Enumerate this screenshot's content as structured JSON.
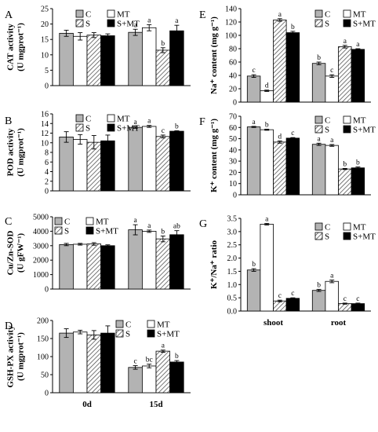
{
  "chart_data": [
    {
      "id": "A",
      "panel_label": "A",
      "type": "bar",
      "ylabel": [
        "CAT activity",
        "(U mgprot⁻¹)"
      ],
      "ylim": [
        0,
        25
      ],
      "yticks": [
        0,
        5,
        10,
        15,
        20,
        25
      ],
      "categories": [
        "0d",
        "15d"
      ],
      "show_categories": false,
      "legend": {
        "rows": [
          [
            "C",
            "MT"
          ],
          [
            "S",
            "S+MT"
          ]
        ]
      },
      "series": [
        {
          "name": "C",
          "fill": "gray",
          "values": [
            17.0,
            17.3
          ],
          "errors": [
            1.0,
            1.0
          ],
          "letters": [
            "",
            "a"
          ]
        },
        {
          "name": "MT",
          "fill": "white",
          "values": [
            16.0,
            18.8
          ],
          "errors": [
            1.2,
            1.0
          ],
          "letters": [
            "",
            "a"
          ]
        },
        {
          "name": "S",
          "fill": "hatch",
          "values": [
            16.4,
            11.5
          ],
          "errors": [
            0.8,
            0.8
          ],
          "letters": [
            "",
            "b"
          ]
        },
        {
          "name": "S+MT",
          "fill": "black",
          "values": [
            16.2,
            17.8
          ],
          "errors": [
            0.6,
            1.8
          ],
          "letters": [
            "",
            "a"
          ]
        }
      ]
    },
    {
      "id": "B",
      "panel_label": "B",
      "type": "bar",
      "ylabel": [
        "POD activity",
        "(U mgprot⁻¹)"
      ],
      "ylim": [
        0,
        16
      ],
      "yticks": [
        0,
        2,
        4,
        6,
        8,
        10,
        12,
        14,
        16
      ],
      "categories": [
        "0d",
        "15d"
      ],
      "show_categories": false,
      "legend": {
        "rows": [
          [
            "C",
            "MT"
          ],
          [
            "S",
            "S+MT"
          ]
        ]
      },
      "series": [
        {
          "name": "C",
          "fill": "gray",
          "values": [
            11.2,
            13.2
          ],
          "errors": [
            1.1,
            0.2
          ],
          "letters": [
            "",
            "a"
          ]
        },
        {
          "name": "MT",
          "fill": "white",
          "values": [
            10.7,
            13.4
          ],
          "errors": [
            1.0,
            0.2
          ],
          "letters": [
            "",
            "a"
          ]
        },
        {
          "name": "S",
          "fill": "hatch",
          "values": [
            10.1,
            11.3
          ],
          "errors": [
            1.4,
            0.3
          ],
          "letters": [
            "",
            "c"
          ]
        },
        {
          "name": "S+MT",
          "fill": "black",
          "values": [
            10.4,
            12.4
          ],
          "errors": [
            1.2,
            0.1
          ],
          "letters": [
            "",
            "b"
          ]
        }
      ]
    },
    {
      "id": "C",
      "panel_label": "C",
      "type": "bar",
      "ylabel": [
        "Cu/Zn-SOD",
        "(U gFW⁻¹)"
      ],
      "ylim": [
        0,
        5000
      ],
      "yticks": [
        0,
        1000,
        2000,
        3000,
        4000,
        5000
      ],
      "categories": [
        "0d",
        "15d"
      ],
      "show_categories": false,
      "legend": {
        "rows": [
          [
            "C",
            "MT"
          ],
          [
            "S",
            "S+MT"
          ]
        ]
      },
      "series": [
        {
          "name": "C",
          "fill": "gray",
          "values": [
            3080,
            4100
          ],
          "errors": [
            80,
            350
          ],
          "letters": [
            "",
            "a"
          ]
        },
        {
          "name": "MT",
          "fill": "white",
          "values": [
            3100,
            4000
          ],
          "errors": [
            60,
            80
          ],
          "letters": [
            "",
            "a"
          ]
        },
        {
          "name": "S",
          "fill": "hatch",
          "values": [
            3120,
            3470
          ],
          "errors": [
            90,
            200
          ],
          "letters": [
            "",
            "b"
          ]
        },
        {
          "name": "S+MT",
          "fill": "black",
          "values": [
            3000,
            3760
          ],
          "errors": [
            60,
            280
          ],
          "letters": [
            "",
            "ab"
          ]
        }
      ]
    },
    {
      "id": "D",
      "panel_label": "D",
      "type": "bar",
      "ylabel": [
        "GSH-PX activity",
        "(U mgprot⁻¹)"
      ],
      "ylim": [
        0,
        200
      ],
      "yticks": [
        0,
        50,
        100,
        150,
        200
      ],
      "categories": [
        "0d",
        "15d"
      ],
      "show_categories": true,
      "legend": {
        "rows": [
          [
            "C",
            "MT"
          ],
          [
            "S",
            "S+MT"
          ]
        ]
      },
      "series": [
        {
          "name": "C",
          "fill": "gray",
          "values": [
            165,
            70
          ],
          "errors": [
            12,
            5
          ],
          "letters": [
            "",
            "c"
          ]
        },
        {
          "name": "MT",
          "fill": "white",
          "values": [
            168,
            74
          ],
          "errors": [
            5,
            5
          ],
          "letters": [
            "",
            "bc"
          ]
        },
        {
          "name": "S",
          "fill": "hatch",
          "values": [
            160,
            115
          ],
          "errors": [
            12,
            3
          ],
          "letters": [
            "",
            "a"
          ]
        },
        {
          "name": "S+MT",
          "fill": "black",
          "values": [
            165,
            85
          ],
          "errors": [
            20,
            4
          ],
          "letters": [
            "",
            "b"
          ]
        }
      ]
    },
    {
      "id": "E",
      "panel_label": "E",
      "type": "bar",
      "ylabel": [
        "Na⁺ content (mg g⁻¹)"
      ],
      "ylim": [
        0,
        140
      ],
      "yticks": [
        0,
        20,
        40,
        60,
        80,
        100,
        120,
        140
      ],
      "categories": [
        "shoot",
        "root"
      ],
      "show_categories": false,
      "legend": {
        "rows": [
          [
            "C",
            "MT"
          ],
          [
            "S",
            "S+MT"
          ]
        ]
      },
      "series": [
        {
          "name": "C",
          "fill": "gray",
          "values": [
            39,
            58
          ],
          "errors": [
            2,
            2
          ],
          "letters": [
            "c",
            "b"
          ]
        },
        {
          "name": "MT",
          "fill": "white",
          "values": [
            17,
            39
          ],
          "errors": [
            1,
            2
          ],
          "letters": [
            "d",
            "c"
          ]
        },
        {
          "name": "S",
          "fill": "hatch",
          "values": [
            123,
            83
          ],
          "errors": [
            2,
            2
          ],
          "letters": [
            "a",
            "a"
          ]
        },
        {
          "name": "S+MT",
          "fill": "black",
          "values": [
            104,
            79
          ],
          "errors": [
            2,
            1
          ],
          "letters": [
            "b",
            "a"
          ]
        }
      ]
    },
    {
      "id": "F",
      "panel_label": "F",
      "type": "bar",
      "ylabel": [
        "K⁺ content (mg g⁻¹)"
      ],
      "ylim": [
        0,
        70
      ],
      "yticks": [
        0,
        10,
        20,
        30,
        40,
        50,
        60,
        70
      ],
      "categories": [
        "shoot",
        "root"
      ],
      "show_categories": false,
      "legend": {
        "rows": [
          [
            "C",
            "MT"
          ],
          [
            "S",
            "S+MT"
          ]
        ]
      },
      "series": [
        {
          "name": "C",
          "fill": "gray",
          "values": [
            60.5,
            45
          ],
          "errors": [
            0.5,
            1.0
          ],
          "letters": [
            "a",
            "a"
          ]
        },
        {
          "name": "MT",
          "fill": "white",
          "values": [
            58,
            44
          ],
          "errors": [
            0.5,
            0.8
          ],
          "letters": [
            "b",
            "a"
          ]
        },
        {
          "name": "S",
          "fill": "hatch",
          "values": [
            47,
            23
          ],
          "errors": [
            1.0,
            0.5
          ],
          "letters": [
            "d",
            "b"
          ]
        },
        {
          "name": "S+MT",
          "fill": "black",
          "values": [
            50.5,
            24
          ],
          "errors": [
            0.5,
            0.8
          ],
          "letters": [
            "c",
            "b"
          ]
        }
      ]
    },
    {
      "id": "G",
      "panel_label": "G",
      "type": "bar",
      "ylabel": [
        "K⁺/Na⁺ ratio"
      ],
      "ylim": [
        0,
        3.5
      ],
      "yticks": [
        "0.0",
        "0.5",
        "1.0",
        "1.5",
        "2.0",
        "2.5",
        "3.0",
        "3.5"
      ],
      "categories": [
        "shoot",
        "root"
      ],
      "show_categories": true,
      "legend": {
        "rows": [
          [
            "C",
            "MT"
          ],
          [
            "S",
            "S+MT"
          ]
        ]
      },
      "series": [
        {
          "name": "C",
          "fill": "gray",
          "values": [
            1.55,
            0.78
          ],
          "errors": [
            0.05,
            0.04
          ],
          "letters": [
            "b",
            "b"
          ]
        },
        {
          "name": "MT",
          "fill": "white",
          "values": [
            3.28,
            1.12
          ],
          "errors": [
            0.03,
            0.05
          ],
          "letters": [
            "a",
            "a"
          ]
        },
        {
          "name": "S",
          "fill": "hatch",
          "values": [
            0.38,
            0.28
          ],
          "errors": [
            0.03,
            0.02
          ],
          "letters": [
            "c",
            "c"
          ]
        },
        {
          "name": "S+MT",
          "fill": "black",
          "values": [
            0.48,
            0.28
          ],
          "errors": [
            0.02,
            0.02
          ],
          "letters": [
            "c",
            "c"
          ]
        }
      ]
    }
  ],
  "colors": {
    "gray": "#b3b3b3",
    "white": "#ffffff",
    "black": "#000000",
    "axis": "#000000"
  }
}
